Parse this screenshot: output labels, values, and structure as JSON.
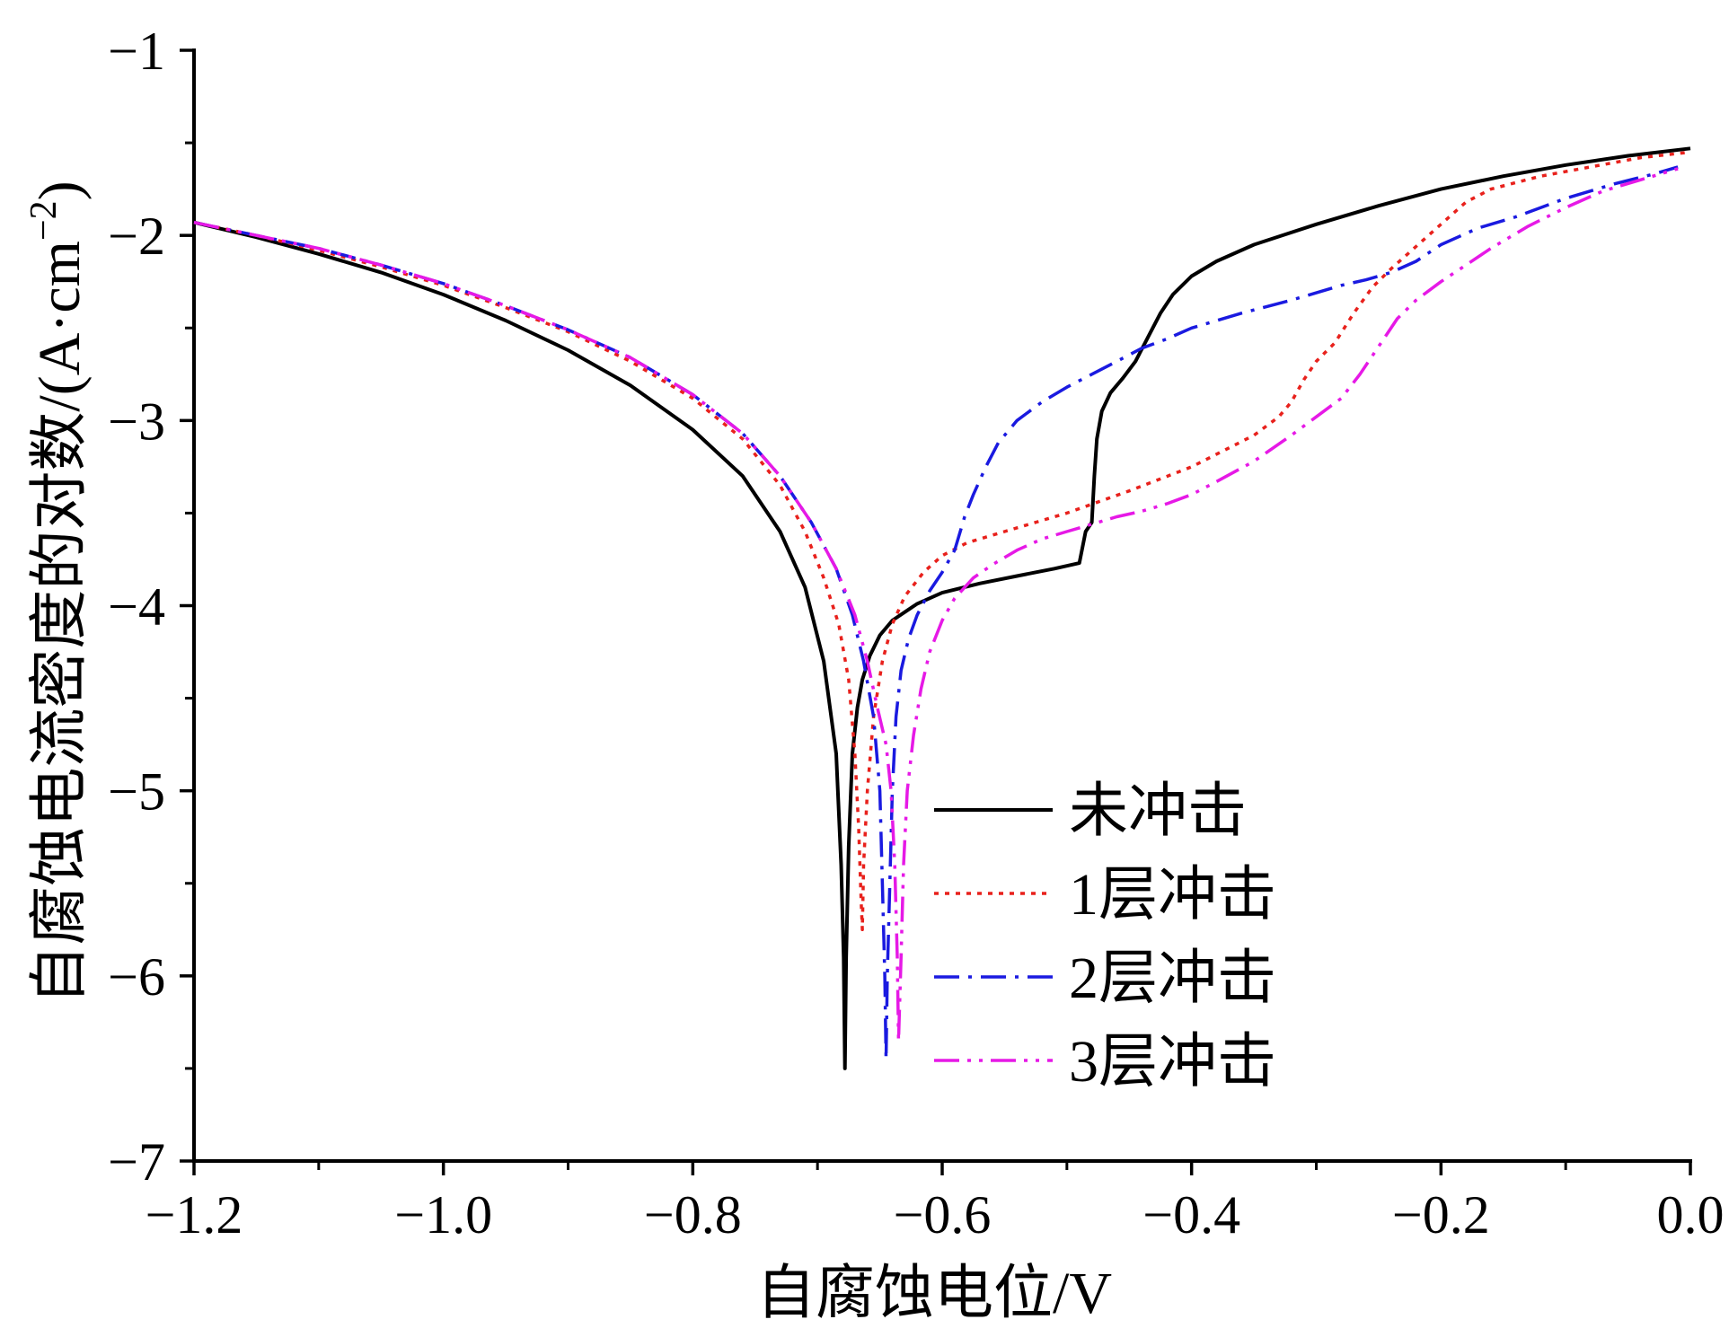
{
  "chart_data": {
    "type": "line",
    "xlabel": "自腐蚀电位/V",
    "ylabel": "自腐蚀电流密度的对数/(A·cm",
    "ylabel_sup": "−2",
    "ylabel_close": ")",
    "xlim": [
      -1.2,
      0.0
    ],
    "ylim": [
      -7,
      -1
    ],
    "x_ticks": [
      -1.2,
      -1.0,
      -0.8,
      -0.6,
      -0.4,
      -0.2,
      0.0
    ],
    "x_tick_labels": [
      "−1.2",
      "−1.0",
      "−0.8",
      "−0.6",
      "−0.4",
      "−0.2",
      "0.0"
    ],
    "x_minor_ticks": [
      -1.1,
      -0.9,
      -0.7,
      -0.5,
      -0.3,
      -0.1
    ],
    "y_ticks": [
      -7,
      -6,
      -5,
      -4,
      -3,
      -2,
      -1
    ],
    "y_tick_labels": [
      "−7",
      "−6",
      "−5",
      "−4",
      "−3",
      "−2",
      "−1"
    ],
    "y_minor_ticks": [
      -6.5,
      -5.5,
      -4.5,
      -3.5,
      -2.5,
      -1.5
    ],
    "grid": false,
    "legend_position": "bottom-right",
    "series": [
      {
        "name": "未冲击",
        "color": "#000000",
        "dash": "solid",
        "points": [
          [
            -1.2,
            -1.93
          ],
          [
            -1.15,
            -2.01
          ],
          [
            -1.1,
            -2.1
          ],
          [
            -1.05,
            -2.2
          ],
          [
            -1.0,
            -2.32
          ],
          [
            -0.95,
            -2.46
          ],
          [
            -0.9,
            -2.62
          ],
          [
            -0.85,
            -2.81
          ],
          [
            -0.8,
            -3.05
          ],
          [
            -0.76,
            -3.3
          ],
          [
            -0.73,
            -3.6
          ],
          [
            -0.71,
            -3.9
          ],
          [
            -0.695,
            -4.3
          ],
          [
            -0.685,
            -4.8
          ],
          [
            -0.681,
            -5.4
          ],
          [
            -0.679,
            -5.9
          ],
          [
            -0.678,
            -6.5
          ],
          [
            -0.677,
            -5.9
          ],
          [
            -0.675,
            -5.3
          ],
          [
            -0.672,
            -4.8
          ],
          [
            -0.668,
            -4.55
          ],
          [
            -0.664,
            -4.4
          ],
          [
            -0.658,
            -4.27
          ],
          [
            -0.65,
            -4.16
          ],
          [
            -0.64,
            -4.08
          ],
          [
            -0.62,
            -3.99
          ],
          [
            -0.6,
            -3.93
          ],
          [
            -0.57,
            -3.88
          ],
          [
            -0.54,
            -3.84
          ],
          [
            -0.51,
            -3.8
          ],
          [
            -0.49,
            -3.77
          ],
          [
            -0.485,
            -3.6
          ],
          [
            -0.48,
            -3.55
          ],
          [
            -0.478,
            -3.3
          ],
          [
            -0.476,
            -3.1
          ],
          [
            -0.472,
            -2.95
          ],
          [
            -0.465,
            -2.85
          ],
          [
            -0.455,
            -2.77
          ],
          [
            -0.445,
            -2.68
          ],
          [
            -0.435,
            -2.55
          ],
          [
            -0.425,
            -2.42
          ],
          [
            -0.415,
            -2.32
          ],
          [
            -0.4,
            -2.22
          ],
          [
            -0.38,
            -2.14
          ],
          [
            -0.35,
            -2.05
          ],
          [
            -0.3,
            -1.94
          ],
          [
            -0.25,
            -1.84
          ],
          [
            -0.2,
            -1.75
          ],
          [
            -0.15,
            -1.68
          ],
          [
            -0.1,
            -1.62
          ],
          [
            -0.05,
            -1.57
          ],
          [
            0.0,
            -1.53
          ]
        ]
      },
      {
        "name": "1层冲击",
        "color": "#e8211c",
        "dash": "dotted",
        "points": [
          [
            -1.2,
            -1.93
          ],
          [
            -1.15,
            -2.0
          ],
          [
            -1.1,
            -2.08
          ],
          [
            -1.05,
            -2.17
          ],
          [
            -1.0,
            -2.27
          ],
          [
            -0.95,
            -2.39
          ],
          [
            -0.9,
            -2.52
          ],
          [
            -0.85,
            -2.68
          ],
          [
            -0.8,
            -2.88
          ],
          [
            -0.76,
            -3.1
          ],
          [
            -0.73,
            -3.35
          ],
          [
            -0.71,
            -3.6
          ],
          [
            -0.695,
            -3.85
          ],
          [
            -0.683,
            -4.1
          ],
          [
            -0.675,
            -4.4
          ],
          [
            -0.67,
            -4.8
          ],
          [
            -0.667,
            -5.2
          ],
          [
            -0.665,
            -5.6
          ],
          [
            -0.664,
            -5.75
          ],
          [
            -0.663,
            -5.4
          ],
          [
            -0.66,
            -5.0
          ],
          [
            -0.655,
            -4.6
          ],
          [
            -0.648,
            -4.3
          ],
          [
            -0.64,
            -4.1
          ],
          [
            -0.63,
            -3.95
          ],
          [
            -0.615,
            -3.82
          ],
          [
            -0.6,
            -3.73
          ],
          [
            -0.58,
            -3.66
          ],
          [
            -0.55,
            -3.6
          ],
          [
            -0.5,
            -3.5
          ],
          [
            -0.45,
            -3.38
          ],
          [
            -0.4,
            -3.25
          ],
          [
            -0.35,
            -3.08
          ],
          [
            -0.33,
            -2.98
          ],
          [
            -0.32,
            -2.9
          ],
          [
            -0.31,
            -2.78
          ],
          [
            -0.3,
            -2.68
          ],
          [
            -0.285,
            -2.58
          ],
          [
            -0.27,
            -2.42
          ],
          [
            -0.255,
            -2.28
          ],
          [
            -0.24,
            -2.18
          ],
          [
            -0.22,
            -2.06
          ],
          [
            -0.2,
            -1.94
          ],
          [
            -0.18,
            -1.82
          ],
          [
            -0.16,
            -1.75
          ],
          [
            -0.12,
            -1.68
          ],
          [
            -0.08,
            -1.63
          ],
          [
            -0.04,
            -1.58
          ],
          [
            0.0,
            -1.55
          ]
        ]
      },
      {
        "name": "2层冲击",
        "color": "#1a1ae0",
        "dash": "dashdot",
        "points": [
          [
            -1.2,
            -1.93
          ],
          [
            -1.15,
            -2.0
          ],
          [
            -1.1,
            -2.07
          ],
          [
            -1.05,
            -2.16
          ],
          [
            -1.0,
            -2.26
          ],
          [
            -0.95,
            -2.38
          ],
          [
            -0.9,
            -2.51
          ],
          [
            -0.85,
            -2.66
          ],
          [
            -0.8,
            -2.86
          ],
          [
            -0.76,
            -3.07
          ],
          [
            -0.73,
            -3.3
          ],
          [
            -0.705,
            -3.55
          ],
          [
            -0.685,
            -3.8
          ],
          [
            -0.672,
            -4.05
          ],
          [
            -0.663,
            -4.3
          ],
          [
            -0.655,
            -4.6
          ],
          [
            -0.65,
            -5.0
          ],
          [
            -0.648,
            -5.5
          ],
          [
            -0.646,
            -6.0
          ],
          [
            -0.645,
            -6.45
          ],
          [
            -0.644,
            -6.0
          ],
          [
            -0.642,
            -5.5
          ],
          [
            -0.64,
            -5.0
          ],
          [
            -0.637,
            -4.6
          ],
          [
            -0.633,
            -4.35
          ],
          [
            -0.627,
            -4.18
          ],
          [
            -0.62,
            -4.05
          ],
          [
            -0.61,
            -3.92
          ],
          [
            -0.6,
            -3.82
          ],
          [
            -0.59,
            -3.7
          ],
          [
            -0.582,
            -3.52
          ],
          [
            -0.575,
            -3.4
          ],
          [
            -0.565,
            -3.25
          ],
          [
            -0.555,
            -3.12
          ],
          [
            -0.54,
            -3.0
          ],
          [
            -0.52,
            -2.9
          ],
          [
            -0.5,
            -2.82
          ],
          [
            -0.48,
            -2.75
          ],
          [
            -0.46,
            -2.68
          ],
          [
            -0.44,
            -2.61
          ],
          [
            -0.42,
            -2.56
          ],
          [
            -0.4,
            -2.5
          ],
          [
            -0.36,
            -2.42
          ],
          [
            -0.32,
            -2.35
          ],
          [
            -0.28,
            -2.27
          ],
          [
            -0.26,
            -2.24
          ],
          [
            -0.24,
            -2.2
          ],
          [
            -0.22,
            -2.14
          ],
          [
            -0.2,
            -2.05
          ],
          [
            -0.17,
            -1.96
          ],
          [
            -0.14,
            -1.9
          ],
          [
            -0.1,
            -1.8
          ],
          [
            -0.06,
            -1.72
          ],
          [
            -0.03,
            -1.67
          ],
          [
            -0.01,
            -1.63
          ]
        ]
      },
      {
        "name": "3层冲击",
        "color": "#e619e6",
        "dash": "dashdotdot",
        "points": [
          [
            -1.2,
            -1.93
          ],
          [
            -1.15,
            -2.0
          ],
          [
            -1.1,
            -2.07
          ],
          [
            -1.05,
            -2.16
          ],
          [
            -1.0,
            -2.26
          ],
          [
            -0.95,
            -2.38
          ],
          [
            -0.9,
            -2.51
          ],
          [
            -0.85,
            -2.66
          ],
          [
            -0.8,
            -2.86
          ],
          [
            -0.76,
            -3.07
          ],
          [
            -0.73,
            -3.3
          ],
          [
            -0.705,
            -3.55
          ],
          [
            -0.685,
            -3.8
          ],
          [
            -0.67,
            -4.05
          ],
          [
            -0.66,
            -4.3
          ],
          [
            -0.652,
            -4.55
          ],
          [
            -0.645,
            -4.75
          ],
          [
            -0.641,
            -5.0
          ],
          [
            -0.638,
            -5.4
          ],
          [
            -0.636,
            -5.9
          ],
          [
            -0.635,
            -6.35
          ],
          [
            -0.633,
            -5.9
          ],
          [
            -0.631,
            -5.4
          ],
          [
            -0.628,
            -5.0
          ],
          [
            -0.623,
            -4.7
          ],
          [
            -0.617,
            -4.45
          ],
          [
            -0.61,
            -4.25
          ],
          [
            -0.6,
            -4.08
          ],
          [
            -0.59,
            -3.96
          ],
          [
            -0.575,
            -3.85
          ],
          [
            -0.56,
            -3.78
          ],
          [
            -0.54,
            -3.7
          ],
          [
            -0.52,
            -3.64
          ],
          [
            -0.5,
            -3.6
          ],
          [
            -0.48,
            -3.56
          ],
          [
            -0.46,
            -3.52
          ],
          [
            -0.44,
            -3.49
          ],
          [
            -0.42,
            -3.45
          ],
          [
            -0.4,
            -3.4
          ],
          [
            -0.38,
            -3.33
          ],
          [
            -0.35,
            -3.22
          ],
          [
            -0.32,
            -3.08
          ],
          [
            -0.3,
            -2.98
          ],
          [
            -0.28,
            -2.88
          ],
          [
            -0.265,
            -2.75
          ],
          [
            -0.25,
            -2.6
          ],
          [
            -0.235,
            -2.45
          ],
          [
            -0.22,
            -2.35
          ],
          [
            -0.2,
            -2.25
          ],
          [
            -0.18,
            -2.16
          ],
          [
            -0.16,
            -2.07
          ],
          [
            -0.13,
            -1.95
          ],
          [
            -0.1,
            -1.85
          ],
          [
            -0.07,
            -1.76
          ],
          [
            -0.04,
            -1.7
          ],
          [
            -0.01,
            -1.64
          ]
        ]
      }
    ]
  }
}
